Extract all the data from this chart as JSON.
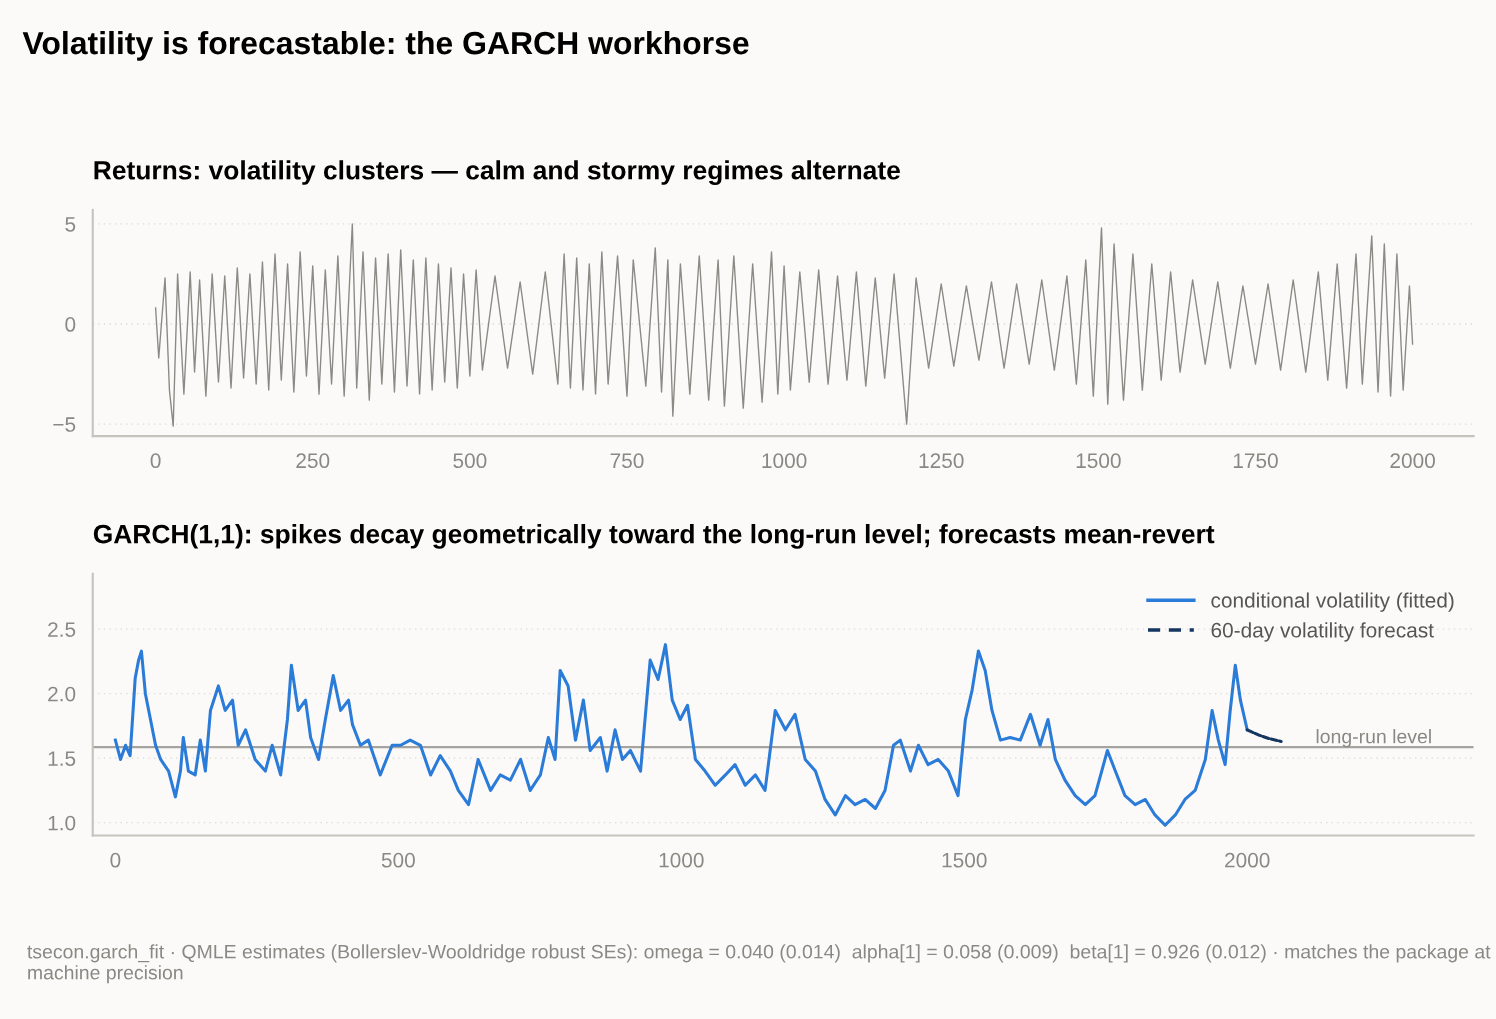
{
  "chart_data": [
    {
      "type": "line",
      "title": "Returns: volatility clusters — calm and stormy regimes alternate",
      "annotations": [
        "Volatility is forecastable: the GARCH workhorse"
      ],
      "series": [
        {
          "color": "#8c8a85",
          "x": [
            0,
            5,
            15,
            22,
            28,
            35,
            45,
            55,
            62,
            70,
            80,
            90,
            100,
            110,
            120,
            130,
            140,
            150,
            160,
            170,
            180,
            190,
            200,
            210,
            220,
            230,
            240,
            250,
            260,
            270,
            280,
            290,
            300,
            313,
            320,
            330,
            340,
            350,
            360,
            370,
            380,
            390,
            400,
            410,
            420,
            430,
            440,
            450,
            460,
            470,
            480,
            490,
            500,
            510,
            520,
            540,
            560,
            580,
            600,
            620,
            640,
            650,
            660,
            670,
            680,
            690,
            700,
            710,
            720,
            735,
            750,
            760,
            780,
            795,
            805,
            815,
            823,
            835,
            850,
            865,
            880,
            895,
            905,
            920,
            935,
            950,
            965,
            980,
            990,
            1000,
            1010,
            1025,
            1040,
            1055,
            1070,
            1085,
            1100,
            1115,
            1130,
            1145,
            1160,
            1175,
            1195,
            1210,
            1230,
            1250,
            1270,
            1290,
            1310,
            1330,
            1350,
            1370,
            1390,
            1410,
            1430,
            1450,
            1465,
            1480,
            1492,
            1505,
            1515,
            1525,
            1540,
            1555,
            1570,
            1585,
            1600,
            1615,
            1630,
            1650,
            1670,
            1690,
            1710,
            1730,
            1750,
            1770,
            1790,
            1810,
            1830,
            1850,
            1865,
            1880,
            1895,
            1910,
            1920,
            1935,
            1945,
            1955,
            1965,
            1975,
            1985,
            1995,
            2000
          ],
          "values": [
            0.8,
            -1.7,
            2.3,
            -3.3,
            -5.1,
            2.5,
            -3.5,
            2.6,
            -2.4,
            2.2,
            -3.6,
            2.5,
            -2.9,
            2.4,
            -3.2,
            2.8,
            -2.7,
            2.5,
            -3.0,
            3.1,
            -3.3,
            3.5,
            -2.8,
            3.0,
            -3.4,
            3.6,
            -2.6,
            2.9,
            -3.5,
            2.7,
            -3.0,
            3.4,
            -3.6,
            5.0,
            -3.2,
            3.6,
            -3.8,
            3.3,
            -3.0,
            3.5,
            -3.4,
            3.7,
            -3.1,
            3.2,
            -3.5,
            3.3,
            -3.3,
            3.0,
            -2.9,
            2.8,
            -3.2,
            2.5,
            -2.6,
            2.7,
            -2.3,
            2.4,
            -2.2,
            2.1,
            -2.5,
            2.6,
            -3.0,
            3.5,
            -3.2,
            3.3,
            -3.3,
            3.0,
            -3.5,
            3.6,
            -3.0,
            3.4,
            -3.6,
            3.2,
            -3.1,
            3.8,
            -3.4,
            3.2,
            -4.6,
            3.0,
            -3.5,
            3.4,
            -3.8,
            3.2,
            -4.1,
            3.4,
            -4.2,
            3.0,
            -3.9,
            3.6,
            -3.5,
            2.9,
            -3.3,
            2.6,
            -2.9,
            2.7,
            -3.0,
            2.4,
            -2.8,
            2.6,
            -3.1,
            2.3,
            -2.7,
            2.5,
            -5.0,
            2.3,
            -2.2,
            2.0,
            -2.1,
            1.9,
            -1.8,
            2.1,
            -2.2,
            2.0,
            -2.0,
            2.2,
            -2.3,
            2.4,
            -3.0,
            3.2,
            -3.6,
            4.8,
            -4.0,
            4.0,
            -3.8,
            3.5,
            -3.3,
            3.0,
            -2.8,
            2.6,
            -2.4,
            2.2,
            -2.0,
            2.1,
            -2.2,
            1.9,
            -2.0,
            2.0,
            -2.3,
            2.2,
            -2.4,
            2.6,
            -2.8,
            3.0,
            -3.2,
            3.5,
            -3.0,
            4.4,
            -3.4,
            4.0,
            -3.6,
            3.5,
            -3.3,
            1.9,
            -1.0
          ]
        }
      ],
      "xlim": [
        -100,
        2097
      ],
      "xticks": [
        0,
        250,
        500,
        750,
        1000,
        1250,
        1500,
        1750,
        2000
      ],
      "ylim": [
        -5.6,
        5.7
      ],
      "yticks": [
        {
          "value": -5,
          "label": "−5"
        },
        0,
        5
      ],
      "grid": "y",
      "legend": false
    },
    {
      "type": "line",
      "title": "GARCH(1,1): spikes decay geometrically toward the long-run level; forecasts mean-revert",
      "annotations": [
        "tsecon.garch_fit · QMLE estimates (Bollerslev-Wooldridge robust SEs): omega = 0.040 (0.014)  alpha[1] = 0.058 (0.009)  beta[1] = 0.926 (0.012) · matches the package at machine precision"
      ],
      "series": [
        {
          "name": "conditional volatility (fitted)",
          "color": "#2b7bd9",
          "line_style": "solid",
          "x": [
            0,
            9,
            18,
            26,
            35,
            41,
            46,
            53,
            62,
            71,
            80,
            94,
            106,
            115,
            120,
            129,
            141,
            150,
            159,
            168,
            182,
            194,
            207,
            217,
            230,
            247,
            265,
            277,
            292,
            304,
            311,
            323,
            336,
            345,
            359,
            371,
            385,
            398,
            412,
            419,
            433,
            447,
            468,
            489,
            504,
            521,
            539,
            557,
            574,
            592,
            606,
            624,
            641,
            663,
            680,
            698,
            716,
            733,
            751,
            765,
            777,
            786,
            800,
            813,
            827,
            839,
            857,
            869,
            883,
            896,
            910,
            928,
            945,
            959,
            972,
            984,
            998,
            1011,
            1025,
            1042,
            1060,
            1078,
            1095,
            1113,
            1131,
            1148,
            1166,
            1184,
            1201,
            1219,
            1237,
            1254,
            1272,
            1290,
            1307,
            1325,
            1343,
            1360,
            1375,
            1387,
            1405,
            1419,
            1436,
            1454,
            1472,
            1489,
            1502,
            1514,
            1525,
            1537,
            1549,
            1564,
            1581,
            1599,
            1617,
            1634,
            1648,
            1661,
            1678,
            1696,
            1714,
            1731,
            1753,
            1767,
            1784,
            1802,
            1820,
            1837,
            1855,
            1873,
            1890,
            1908,
            1926,
            1938,
            1949,
            1961,
            1970,
            1979,
            1988,
            2000
          ],
          "values": [
            1.64,
            1.49,
            1.6,
            1.52,
            2.12,
            2.26,
            2.33,
            2.0,
            1.8,
            1.6,
            1.49,
            1.4,
            1.2,
            1.4,
            1.66,
            1.4,
            1.37,
            1.64,
            1.4,
            1.87,
            2.06,
            1.87,
            1.95,
            1.6,
            1.72,
            1.49,
            1.4,
            1.6,
            1.37,
            1.8,
            2.22,
            1.87,
            1.95,
            1.66,
            1.49,
            1.8,
            2.14,
            1.87,
            1.95,
            1.76,
            1.6,
            1.64,
            1.37,
            1.6,
            1.6,
            1.64,
            1.6,
            1.37,
            1.52,
            1.4,
            1.25,
            1.14,
            1.49,
            1.25,
            1.37,
            1.33,
            1.49,
            1.25,
            1.37,
            1.66,
            1.49,
            2.18,
            2.06,
            1.64,
            1.95,
            1.56,
            1.66,
            1.4,
            1.72,
            1.49,
            1.56,
            1.4,
            2.26,
            2.11,
            2.38,
            1.95,
            1.8,
            1.91,
            1.49,
            1.4,
            1.29,
            1.37,
            1.45,
            1.29,
            1.37,
            1.25,
            1.87,
            1.72,
            1.84,
            1.49,
            1.4,
            1.18,
            1.06,
            1.21,
            1.14,
            1.18,
            1.11,
            1.25,
            1.6,
            1.64,
            1.4,
            1.6,
            1.45,
            1.49,
            1.4,
            1.21,
            1.8,
            2.03,
            2.33,
            2.18,
            1.87,
            1.64,
            1.66,
            1.64,
            1.84,
            1.6,
            1.8,
            1.49,
            1.33,
            1.21,
            1.14,
            1.21,
            1.56,
            1.4,
            1.21,
            1.14,
            1.18,
            1.06,
            0.98,
            1.06,
            1.18,
            1.25,
            1.49,
            1.87,
            1.64,
            1.45,
            1.87,
            2.22,
            1.95,
            1.72
          ]
        },
        {
          "name": "60-day volatility forecast",
          "color": "#14365f",
          "line_style": "dashed",
          "x": [
            2000,
            2020,
            2040,
            2060
          ],
          "values": [
            1.72,
            1.68,
            1.65,
            1.63
          ]
        }
      ],
      "ref_lines": [
        {
          "axis": "y",
          "value": 1.585,
          "label": "long-run level",
          "color": "#a6a49f"
        }
      ],
      "xlim": [
        -40,
        2400
      ],
      "xticks": [
        0,
        500,
        1000,
        1500,
        2000
      ],
      "ylim": [
        0.9,
        2.93
      ],
      "yticks": [
        {
          "value": 1,
          "label": "1.0"
        },
        {
          "value": 1.5,
          "label": "1.5"
        },
        {
          "value": 2,
          "label": "2.0"
        },
        {
          "value": 2.5,
          "label": "2.5"
        }
      ],
      "grid": "y",
      "legend": "top right"
    }
  ]
}
